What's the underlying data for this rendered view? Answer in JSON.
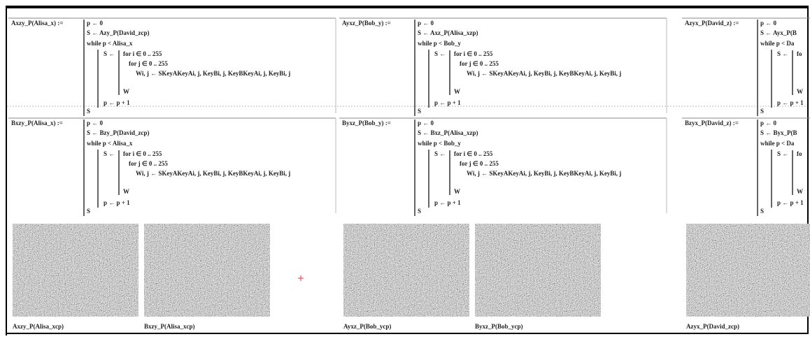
{
  "columns": [
    {
      "blocks": [
        {
          "definition": "Axzy_P(Alisa_x) :=",
          "lines": [
            "p ← 0",
            "S ← Azy_P(David_zcp)",
            "while p < Alisa_x",
            "S ←",
            "for i ∈ 0 .. 255",
            "for j ∈ 0 .. 255",
            "Wi, j ← SKeyAKeyAi, j, KeyBi, j, KeyBKeyAi, j, KeyBi, j",
            "W",
            "p ← p + 1",
            "S"
          ]
        },
        {
          "definition": "Bxzy_P(Alisa_x) :=",
          "lines": [
            "p ← 0",
            "S ← Bzy_P(David_zcp)",
            "while p < Alisa_x",
            "S ←",
            "for i ∈ 0 .. 255",
            "for j ∈ 0 .. 255",
            "Wi, j ← SKeyAKeyAi, j, KeyBi, j, KeyBKeyAi, j, KeyBi, j",
            "W",
            "p ← p + 1",
            "S"
          ]
        }
      ],
      "captions": [
        "Axzy_P(Alisa_xcp)",
        "Bxzy_P(Alisa_xcp)"
      ]
    },
    {
      "blocks": [
        {
          "definition": "Ayxz_P(Bob_y) :=",
          "lines": [
            "p ← 0",
            "S ← Axz_P(Alisa_xzp)",
            "while p < Bob_y",
            "S ←",
            "for i ∈ 0 .. 255",
            "for j ∈ 0 .. 255",
            "Wi, j ← SKeyAKeyAi, j, KeyBi, j, KeyBKeyAi, j, KeyBi, j",
            "W",
            "p ← p + 1",
            "S"
          ]
        },
        {
          "definition": "Byxz_P(Bob_y) :=",
          "lines": [
            "p ← 0",
            "S ← Bxz_P(Alisa_xzp)",
            "while p < Bob_y",
            "S ←",
            "for i ∈ 0 .. 255",
            "for j ∈ 0 .. 255",
            "Wi, j ← SKeyAKeyAi, j, KeyBi, j, KeyBKeyAi, j, KeyBi, j",
            "W",
            "p ← p + 1",
            "S"
          ]
        }
      ],
      "captions": [
        "Ayxz_P(Bob_ycp)",
        "Byxz_P(Bob_ycp)"
      ]
    },
    {
      "blocks": [
        {
          "definition": "Azyx_P(David_z) :=",
          "lines": [
            "p ← 0",
            "S ← Ayx_P(B",
            "while p < Da",
            "S ←",
            "fo",
            "",
            "",
            "W",
            "p ← p + 1",
            "S"
          ]
        },
        {
          "definition": "Bzyx_P(David_z) :=",
          "lines": [
            "p ← 0",
            "S ← Byx_P(B",
            "while p < Da",
            "S ←",
            "fo",
            "",
            "",
            "W",
            "p ← p + 1",
            "S"
          ]
        }
      ],
      "captions": [
        "Azyx_P(David_zcp)"
      ]
    }
  ]
}
